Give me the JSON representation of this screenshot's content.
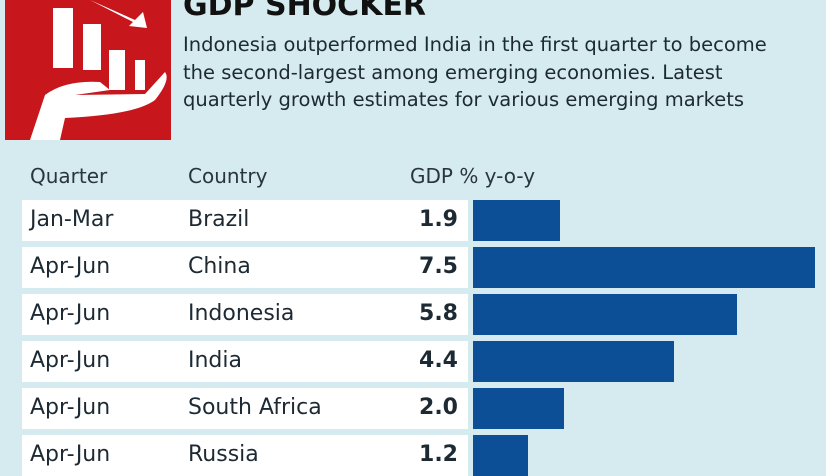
{
  "chart_data": {
    "type": "bar",
    "title": "GDP SHOCKER",
    "subtitle": "Indonesia outperformed India in the first quarter to become the second-largest among emerging economies. Latest quarterly growth estimates for various emerging markets",
    "headers": [
      "Quarter",
      "Country",
      "GDP % y-o-y"
    ],
    "rows": [
      {
        "quarter": "Jan-Mar",
        "country": "Brazil",
        "value": 1.9,
        "label": "1.9"
      },
      {
        "quarter": "Apr-Jun",
        "country": "China",
        "value": 7.5,
        "label": "7.5"
      },
      {
        "quarter": "Apr-Jun",
        "country": "Indonesia",
        "value": 5.8,
        "label": "5.8"
      },
      {
        "quarter": "Apr-Jun",
        "country": "India",
        "value": 4.4,
        "label": "4.4"
      },
      {
        "quarter": "Apr-Jun",
        "country": "South Africa",
        "value": 2.0,
        "label": "2.0"
      },
      {
        "quarter": "Apr-Jun",
        "country": "Russia",
        "value": 1.2,
        "label": "1.2"
      }
    ],
    "xlim": [
      0,
      7.5
    ],
    "colors": {
      "bar": "#0c4f97",
      "icon": "#c8161d"
    }
  }
}
